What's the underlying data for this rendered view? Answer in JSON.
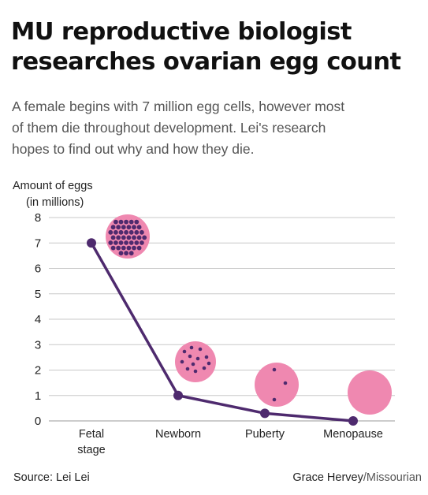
{
  "header": {
    "title_line1": "MU reproductive biologist",
    "title_line2": "researches ovarian egg count",
    "subtitle_line1": "A female begins with 7 million egg cells, however most",
    "subtitle_line2": "of them die throughout development. Lei's research",
    "subtitle_line3": "hopes to find out why and how they die."
  },
  "chart_data": {
    "type": "line",
    "ylabel_line1": "Amount of eggs",
    "ylabel_line2": "(in millions)",
    "ylim": [
      0,
      8
    ],
    "yticks": [
      0,
      1,
      2,
      3,
      4,
      5,
      6,
      7,
      8
    ],
    "grid": true,
    "categories": [
      [
        "Fetal",
        "stage"
      ],
      [
        "Newborn"
      ],
      [
        "Puberty"
      ],
      [
        "Menopause"
      ]
    ],
    "values": [
      7,
      1,
      0.3,
      0
    ],
    "colors": {
      "line": "#4e2a6e",
      "circle": "#ef88b0",
      "dot": "#4e2a6e",
      "grid": "#c8c8c8"
    },
    "illustrations": [
      {
        "category": "Fetal stage",
        "icon": "egg-cells-dense-icon"
      },
      {
        "category": "Newborn",
        "icon": "egg-cells-some-icon"
      },
      {
        "category": "Puberty",
        "icon": "egg-cells-few-icon"
      },
      {
        "category": "Menopause",
        "icon": "egg-cells-none-icon"
      }
    ]
  },
  "footer": {
    "source": "Source: Lei Lei",
    "credit_name": "Grace Hervey",
    "credit_org": "/Missourian"
  }
}
